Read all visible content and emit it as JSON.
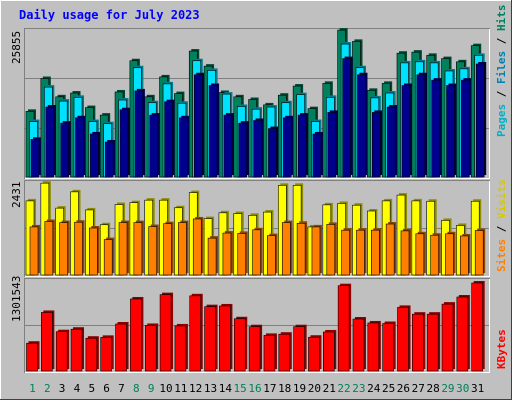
{
  "chart_data": [
    {
      "type": "bar",
      "title": "Daily usage for July 2023",
      "categories": [
        "1",
        "2",
        "3",
        "4",
        "5",
        "6",
        "7",
        "8",
        "9",
        "10",
        "11",
        "12",
        "13",
        "14",
        "15",
        "16",
        "17",
        "18",
        "19",
        "20",
        "21",
        "22",
        "23",
        "24",
        "25",
        "26",
        "27",
        "28",
        "29",
        "30",
        "31"
      ],
      "weekend_days": [
        "1",
        "2",
        "8",
        "9",
        "15",
        "16",
        "22",
        "23",
        "29",
        "30"
      ],
      "ylabel_max": "25855",
      "ylim": [
        0,
        27500
      ],
      "legend": [
        "Pages",
        "Files",
        "Hits"
      ],
      "series": [
        {
          "name": "Hits",
          "color": "#00805c",
          "values": [
            12200,
            18300,
            14900,
            15600,
            12900,
            11500,
            15800,
            21600,
            14900,
            18600,
            15500,
            23400,
            20600,
            15700,
            14900,
            14400,
            13400,
            15200,
            16900,
            12700,
            17400,
            27300,
            25200,
            16100,
            17400,
            23000,
            23200,
            22600,
            22000,
            21400,
            24400
          ]
        },
        {
          "name": "Files",
          "color": "#00e0ff",
          "values": [
            10300,
            16700,
            14100,
            14800,
            10300,
            9900,
            14300,
            20300,
            13800,
            17300,
            13700,
            21600,
            19800,
            15400,
            13100,
            12600,
            13000,
            13800,
            15300,
            10300,
            14800,
            24700,
            20300,
            14700,
            15600,
            21200,
            21400,
            21200,
            19700,
            20100,
            22600
          ]
        },
        {
          "name": "Pages",
          "color": "#00008c",
          "values": [
            7000,
            13000,
            10000,
            11000,
            8000,
            6500,
            12500,
            16000,
            11500,
            14000,
            11000,
            19000,
            17000,
            11500,
            10000,
            10500,
            9000,
            11000,
            11500,
            8000,
            12000,
            22000,
            19000,
            12000,
            13000,
            17000,
            19000,
            18000,
            17000,
            18000,
            21000
          ]
        }
      ]
    },
    {
      "type": "bar",
      "ylabel_max": "2431",
      "ylim": [
        0,
        2600
      ],
      "legend": [
        "Sites",
        "Visits"
      ],
      "series": [
        {
          "name": "Visits",
          "color": "#ffff00",
          "values": [
            2050,
            2540,
            1850,
            2300,
            1800,
            1390,
            1950,
            2000,
            2070,
            2070,
            1860,
            2280,
            1560,
            1720,
            1700,
            1650,
            1740,
            2480,
            2480,
            1330,
            1940,
            1980,
            1930,
            1770,
            2050,
            2210,
            2050,
            2040,
            1510,
            1370,
            2040
          ]
        },
        {
          "name": "Sites",
          "color": "#ff8000",
          "values": [
            1330,
            1480,
            1450,
            1460,
            1300,
            980,
            1450,
            1450,
            1340,
            1420,
            1450,
            1550,
            1020,
            1160,
            1150,
            1250,
            1090,
            1450,
            1430,
            1330,
            1400,
            1240,
            1240,
            1240,
            1410,
            1220,
            1140,
            1100,
            1140,
            1080,
            1230
          ]
        }
      ]
    },
    {
      "type": "bar",
      "ylabel_max": "1301543",
      "ylim": [
        0,
        1400000
      ],
      "legend": [
        "KBytes"
      ],
      "series": [
        {
          "name": "KBytes",
          "color": "#ff0000",
          "values": [
            423000,
            891000,
            598000,
            636000,
            499000,
            512000,
            715000,
            1096000,
            693000,
            1162000,
            686000,
            1144000,
            979000,
            990000,
            795000,
            674000,
            542000,
            560000,
            674000,
            514000,
            594000,
            1298000,
            791000,
            731000,
            723000,
            968000,
            865000,
            865000,
            1018000,
            1126000,
            1339000
          ]
        }
      ]
    }
  ]
}
